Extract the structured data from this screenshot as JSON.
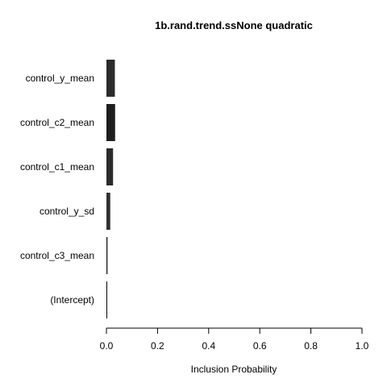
{
  "chart_data": {
    "type": "bar",
    "orientation": "horizontal",
    "title": "1b.rand.trend.ssNone quadratic",
    "xlabel": "Inclusion Probability",
    "ylabel": "",
    "xlim": [
      0,
      1
    ],
    "x_ticks": [
      0.0,
      0.2,
      0.4,
      0.6,
      0.8,
      1.0
    ],
    "x_tick_labels": [
      "0.0",
      "0.2",
      "0.4",
      "0.6",
      "0.8",
      "1.0"
    ],
    "grid": false,
    "categories": [
      "control_y_mean",
      "control_c2_mean",
      "control_c1_mean",
      "control_y_sd",
      "control_c3_mean",
      "(Intercept)"
    ],
    "values": [
      0.033,
      0.034,
      0.026,
      0.015,
      0.004,
      0.001
    ],
    "bar_colors": [
      "#2b2b2b",
      "#1e1e1e",
      "#2b2b2b",
      "#303030",
      "#111111",
      "#000000"
    ]
  }
}
